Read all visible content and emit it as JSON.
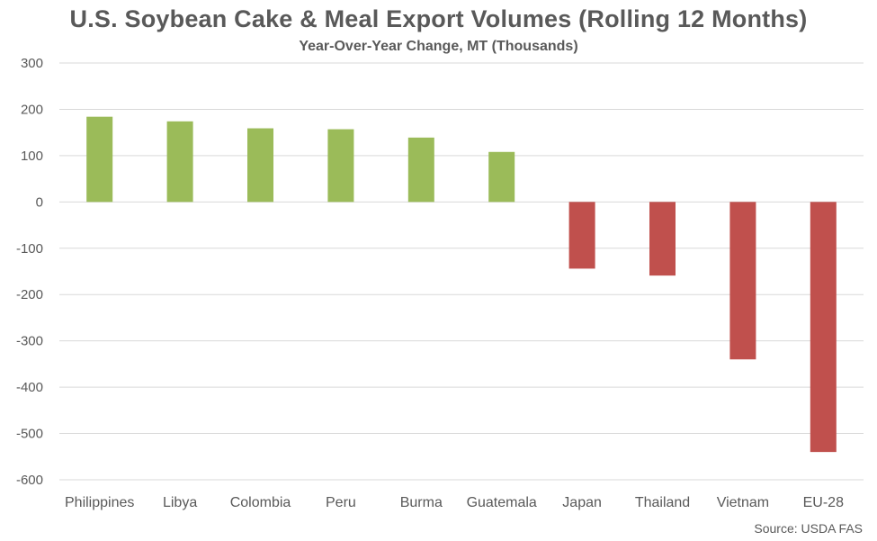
{
  "chart_data": {
    "type": "bar",
    "title": "U.S. Soybean Cake & Meal Export Volumes (Rolling 12 Months)",
    "subtitle": "Year-Over-Year Change, MT (Thousands)",
    "xlabel": "",
    "ylabel": "",
    "ylim": [
      -600,
      300
    ],
    "yticks": [
      300,
      200,
      100,
      0,
      -100,
      -200,
      -300,
      -400,
      -500,
      -600
    ],
    "categories": [
      "Philippines",
      "Libya",
      "Colombia",
      "Peru",
      "Burma",
      "Guatemala",
      "Japan",
      "Thailand",
      "Vietnam",
      "EU-28"
    ],
    "values": [
      184,
      174,
      159,
      157,
      139,
      108,
      -144,
      -159,
      -340,
      -540
    ],
    "colors": {
      "positive": "#9bbb59",
      "negative": "#c0504d",
      "grid": "#d9d9d9",
      "text": "#595959"
    },
    "grid": true,
    "legend": "none",
    "source": "Source: USDA FAS"
  }
}
